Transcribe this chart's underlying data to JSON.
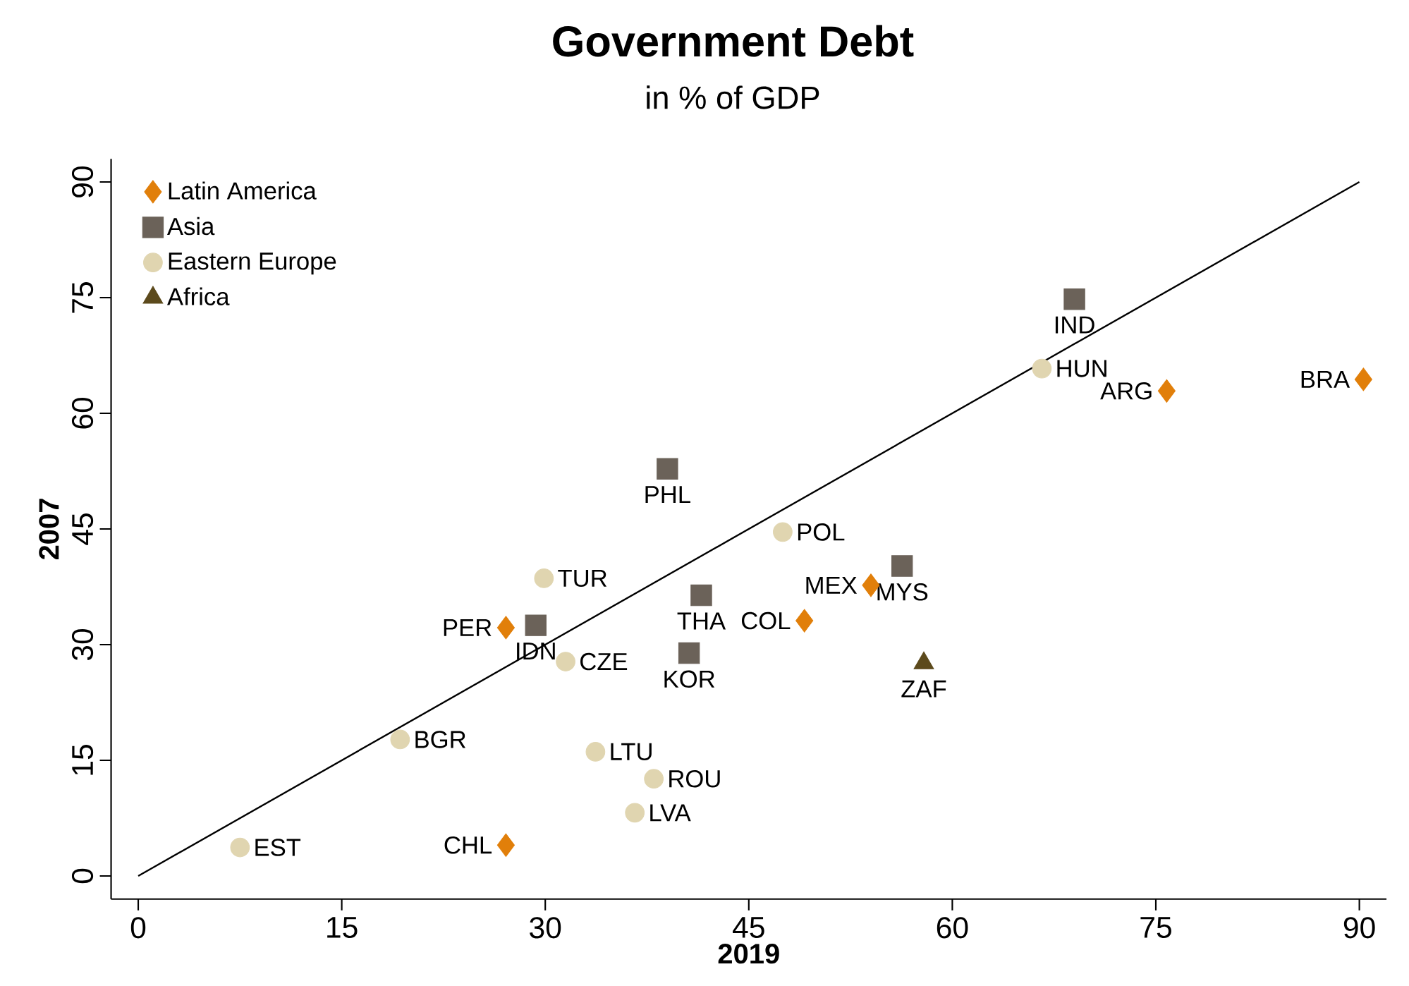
{
  "chart_data": {
    "type": "scatter",
    "title": "Government Debt",
    "subtitle": "in % of GDP",
    "xlabel": "2019",
    "ylabel": "2007",
    "xlim": [
      -2,
      92
    ],
    "ylim": [
      -3,
      93
    ],
    "xticks": [
      0,
      15,
      30,
      45,
      60,
      75,
      90
    ],
    "yticks": [
      0,
      15,
      30,
      45,
      60,
      75,
      90
    ],
    "grid": false,
    "legend": "top left",
    "series": [
      {
        "name": "Latin America",
        "color": "#e17f0a",
        "marker": "diamond",
        "x": [
          90.3,
          75.8,
          54.0,
          49.1,
          27.1,
          27.1
        ],
        "values": [
          64.4,
          62.9,
          37.7,
          33.1,
          32.2,
          4.0
        ]
      },
      {
        "name": "Asia",
        "color": "#6b6259",
        "marker": "square",
        "x": [
          69.0,
          39.0,
          56.3,
          41.5,
          40.6,
          29.3
        ],
        "values": [
          74.8,
          52.8,
          40.2,
          36.4,
          28.9,
          32.5
        ]
      },
      {
        "name": "Eastern Europe",
        "color": "#e0d5b0",
        "marker": "circle",
        "x": [
          66.6,
          47.5,
          29.9,
          31.5,
          19.3,
          33.7,
          38.0,
          36.6,
          7.5
        ],
        "values": [
          65.8,
          44.6,
          38.6,
          27.8,
          17.7,
          16.1,
          12.6,
          8.2,
          3.7
        ]
      },
      {
        "name": "Africa",
        "color": "#5c4a1c",
        "marker": "triangle",
        "x": [
          57.9
        ],
        "values": [
          27.6
        ]
      },
      {
        "type": "line",
        "color": "#000000",
        "marker": "none",
        "x": [
          0,
          90
        ],
        "values": [
          0,
          90
        ]
      }
    ],
    "annotations": [
      {
        "text": "BRA",
        "x": 90.3,
        "y": 64.4
      },
      {
        "text": "ARG",
        "x": 75.8,
        "y": 62.9
      },
      {
        "text": "MEX",
        "x": 54.0,
        "y": 37.7
      },
      {
        "text": "COL",
        "x": 49.1,
        "y": 33.1
      },
      {
        "text": "PER",
        "x": 27.1,
        "y": 32.2
      },
      {
        "text": "CHL",
        "x": 27.1,
        "y": 4.0
      },
      {
        "text": "IND",
        "x": 69.0,
        "y": 74.8
      },
      {
        "text": "PHL",
        "x": 39.0,
        "y": 52.8
      },
      {
        "text": "MYS",
        "x": 56.3,
        "y": 40.2
      },
      {
        "text": "THA",
        "x": 41.5,
        "y": 36.4
      },
      {
        "text": "KOR",
        "x": 40.6,
        "y": 28.9
      },
      {
        "text": "IDN",
        "x": 29.3,
        "y": 32.5
      },
      {
        "text": "HUN",
        "x": 66.6,
        "y": 65.8
      },
      {
        "text": "POL",
        "x": 47.5,
        "y": 44.6
      },
      {
        "text": "TUR",
        "x": 29.9,
        "y": 38.6
      },
      {
        "text": "CZE",
        "x": 31.5,
        "y": 27.8
      },
      {
        "text": "BGR",
        "x": 19.3,
        "y": 17.7
      },
      {
        "text": "LTU",
        "x": 33.7,
        "y": 16.1
      },
      {
        "text": "ROU",
        "x": 38.0,
        "y": 12.6
      },
      {
        "text": "LVA",
        "x": 36.6,
        "y": 8.2
      },
      {
        "text": "EST",
        "x": 7.5,
        "y": 3.7
      },
      {
        "text": "ZAF",
        "x": 57.9,
        "y": 27.6
      }
    ]
  }
}
